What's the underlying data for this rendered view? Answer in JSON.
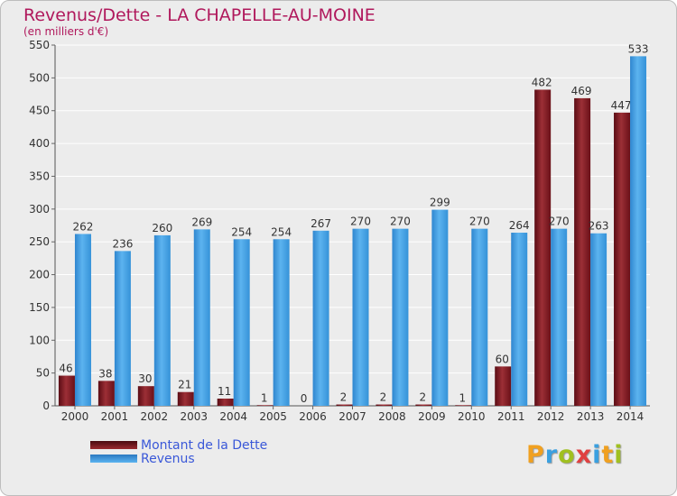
{
  "chart_data": {
    "type": "bar",
    "title": "Revenus/Dette - LA CHAPELLE-AU-MOINE",
    "subtitle": "(en milliers d'€)",
    "categories": [
      "2000",
      "2001",
      "2002",
      "2003",
      "2004",
      "2005",
      "2006",
      "2007",
      "2008",
      "2009",
      "2010",
      "2011",
      "2012",
      "2013",
      "2014"
    ],
    "series": [
      {
        "name": "Montant de la Dette",
        "color": "#7a1420",
        "values": [
          46,
          38,
          30,
          21,
          11,
          1,
          0,
          2,
          2,
          2,
          1,
          60,
          482,
          469,
          447
        ]
      },
      {
        "name": "Revenus",
        "color": "#3d9ce0",
        "values": [
          262,
          236,
          260,
          269,
          254,
          254,
          267,
          270,
          270,
          299,
          270,
          264,
          270,
          263,
          533
        ]
      }
    ],
    "yticks": [
      0,
      50,
      100,
      150,
      200,
      250,
      300,
      350,
      400,
      450,
      500,
      550
    ],
    "ylim": [
      0,
      550
    ],
    "grid": true,
    "legend": "bottom-left"
  },
  "logo": {
    "letters": [
      "P",
      "r",
      "o",
      "x",
      "i",
      "t",
      "i"
    ],
    "colors": [
      "#f0a020",
      "#3aa0e0",
      "#a0c020",
      "#e04040",
      "#3aa0e0",
      "#f0a020",
      "#a0c020"
    ]
  }
}
